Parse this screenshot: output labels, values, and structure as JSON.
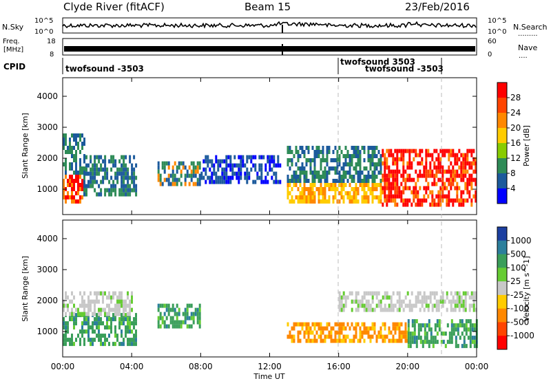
{
  "header": {
    "station": "Clyde River (fitACF)",
    "beam": "Beam 15",
    "date": "23/Feb/2016"
  },
  "top_panels": {
    "nsky_label": "N.Sky",
    "nsky_ticks_left": [
      "10^5",
      "10^0"
    ],
    "nsearch_label": "N.Search",
    "nsearch_ticks_right": [
      "10^5",
      "10^0"
    ],
    "freq_label_line1": "Freq.",
    "freq_label_line2": "[MHz]",
    "freq_ticks": [
      "18",
      "8"
    ],
    "nave_label": "Nave",
    "nave_ticks": [
      "60",
      "0"
    ],
    "cpid_label": "CPID",
    "cpid_entries": [
      "twofsound -3503",
      "twofsound 3503",
      "twofsound -3503"
    ]
  },
  "chart_data": [
    {
      "type": "heatmap",
      "parameter": "Power",
      "ylabel": "Slant Range [km]",
      "xlabel": "",
      "colorbar_label": "Power [dB]",
      "colorbar_ticks": [
        "28",
        "24",
        "20",
        "16",
        "12",
        "8",
        "4"
      ],
      "colorbar_colors": [
        "#ff0000",
        "#ff4400",
        "#ff8800",
        "#ffcc00",
        "#88cc00",
        "#2e8b57",
        "#1c5a9c",
        "#0000ff"
      ],
      "ylim": [
        180,
        4600
      ],
      "yticks": [
        "1000",
        "2000",
        "3000",
        "4000"
      ],
      "xlim_hours": [
        0,
        24
      ],
      "regions": [
        {
          "t0": 0.0,
          "t1": 1.2,
          "r0": 600,
          "r1": 2800,
          "dominant": "red/green"
        },
        {
          "t0": 1.2,
          "t1": 4.2,
          "r0": 800,
          "r1": 2100,
          "dominant": "green/blue"
        },
        {
          "t0": 5.5,
          "t1": 8.0,
          "r0": 1200,
          "r1": 1900,
          "dominant": "green/orange"
        },
        {
          "t0": 8.0,
          "t1": 12.6,
          "r0": 1300,
          "r1": 2100,
          "dominant": "blue"
        },
        {
          "t0": 13.0,
          "t1": 18.5,
          "r0": 600,
          "r1": 2400,
          "dominant": "orange/green"
        },
        {
          "t0": 18.5,
          "t1": 24.0,
          "r0": 500,
          "r1": 2300,
          "dominant": "red"
        }
      ]
    },
    {
      "type": "heatmap",
      "parameter": "Velocity",
      "ylabel": "Slant Range [km]",
      "xlabel": "Time UT",
      "colorbar_label": "Velocity [m s^-1]",
      "colorbar_ticks": [
        "1000",
        "500",
        "100",
        "25",
        "-25",
        "-100",
        "-500",
        "-1000"
      ],
      "colorbar_colors": [
        "#1c3fa0",
        "#2c7f9c",
        "#3a9e5a",
        "#66cc33",
        "#c8c8c8",
        "#ffcc00",
        "#ff8800",
        "#ff4400",
        "#ff0000"
      ],
      "ylim": [
        180,
        4600
      ],
      "yticks": [
        "1000",
        "2000",
        "3000",
        "4000"
      ],
      "xticks": [
        "00:00",
        "04:00",
        "08:00",
        "12:00",
        "16:00",
        "20:00",
        "00:00"
      ],
      "xlim_hours": [
        0,
        24
      ],
      "regions": [
        {
          "t0": 0.0,
          "t1": 4.2,
          "r0": 600,
          "r1": 1600,
          "dominant": "green"
        },
        {
          "t0": 0.0,
          "t1": 4.0,
          "r0": 1600,
          "r1": 2300,
          "dominant": "gray"
        },
        {
          "t0": 5.5,
          "t1": 8.0,
          "r0": 1200,
          "r1": 1900,
          "dominant": "green"
        },
        {
          "t0": 13.0,
          "t1": 20.0,
          "r0": 700,
          "r1": 1300,
          "dominant": "orange"
        },
        {
          "t0": 16.0,
          "t1": 24.0,
          "r0": 1700,
          "r1": 2300,
          "dominant": "gray"
        },
        {
          "t0": 20.0,
          "t1": 24.0,
          "r0": 500,
          "r1": 1400,
          "dominant": "green"
        }
      ]
    }
  ]
}
